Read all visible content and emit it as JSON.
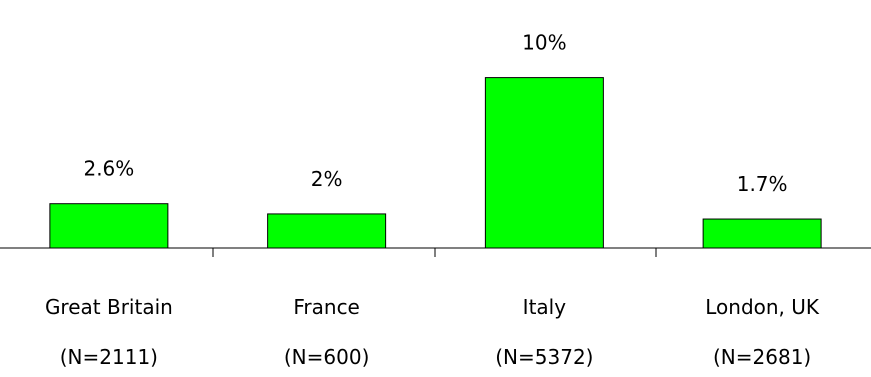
{
  "chart_data": {
    "type": "bar",
    "categories": [
      "Great Britain",
      "France",
      "Italy",
      "London, UK"
    ],
    "sublabels": [
      "(N=2111)",
      "(N=600)",
      "(N=5372)",
      "(N=2681)"
    ],
    "values": [
      2.6,
      2,
      10,
      1.7
    ],
    "data_labels": [
      "2.6%",
      "2%",
      "10%",
      "1.7%"
    ],
    "ylim": [
      0,
      12.5
    ],
    "grid": false,
    "legend": "none",
    "bar_color": "#00ff00"
  }
}
